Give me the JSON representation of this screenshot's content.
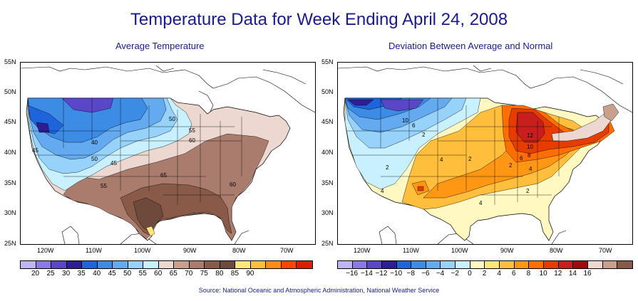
{
  "title": "Temperature Data for Week Ending April 24, 2008",
  "left_map": {
    "subtitle": "Average Temperature",
    "lat_labels": [
      "55N",
      "50N",
      "45N",
      "40N",
      "35N",
      "30N",
      "25N"
    ],
    "lon_labels": [
      "120W",
      "110W",
      "100W",
      "90W",
      "80W",
      "70W"
    ],
    "contour_labels": [
      "50",
      "55",
      "60",
      "40",
      "45",
      "50",
      "45",
      "65",
      "55",
      "60"
    ],
    "legend_colors": [
      "#c0b4f4",
      "#8c78e6",
      "#5a46c8",
      "#2d1e96",
      "#1e64dc",
      "#3c8ce6",
      "#64aaf0",
      "#96d2fa",
      "#c8f0ff",
      "#ecd8d0",
      "#c8a08c",
      "#aa7c6e",
      "#8a5a48",
      "#6e4a3c",
      "#ffe678",
      "#ffbe3c",
      "#ff8c14",
      "#ff4600",
      "#dc1e00"
    ],
    "legend_labels": [
      "20",
      "25",
      "30",
      "35",
      "40",
      "45",
      "50",
      "55",
      "60",
      "65",
      "70",
      "75",
      "80",
      "85",
      "90"
    ]
  },
  "right_map": {
    "subtitle": "Deviation Between Average and Normal",
    "lat_labels": [
      "55N",
      "50N",
      "45N",
      "40N",
      "35N",
      "30N",
      "25N"
    ],
    "lon_labels": [
      "120W",
      "110W",
      "100W",
      "90W",
      "80W",
      "70W"
    ],
    "contour_labels": [
      "10",
      "6",
      "2",
      "4",
      "2",
      "12",
      "10",
      "8",
      "6",
      "2",
      "4",
      "4",
      "2",
      "4",
      "2"
    ],
    "legend_colors": [
      "#c0b4f4",
      "#8c78e6",
      "#5a46c8",
      "#2d1e96",
      "#1e64dc",
      "#3c8ce6",
      "#64aaf0",
      "#96d2fa",
      "#c8f0ff",
      "#fff8c0",
      "#ffe678",
      "#ffbe3c",
      "#ff9614",
      "#ff6e00",
      "#e63c00",
      "#c81e1e",
      "#a00a0a",
      "#ecd8d0",
      "#c8a08c",
      "#8a5a48"
    ],
    "legend_labels": [
      "−16",
      "−14",
      "−12",
      "−10",
      "−8",
      "−6",
      "−4",
      "−2",
      "0",
      "2",
      "4",
      "6",
      "8",
      "10",
      "12",
      "14",
      "16"
    ]
  },
  "source": "Source:  National Oceanic and Atmospheric Administration, National Weather Service"
}
